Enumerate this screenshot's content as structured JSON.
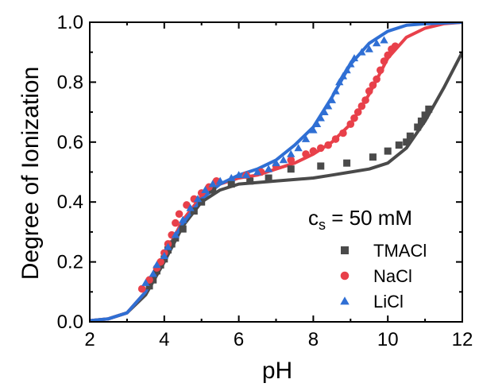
{
  "chart_data": {
    "type": "scatter",
    "xlabel": "pH",
    "ylabel": "Degree of Ionization",
    "xlim": [
      2,
      12
    ],
    "ylim": [
      0.0,
      1.0
    ],
    "x_ticks": [
      "2",
      "4",
      "6",
      "8",
      "10",
      "12"
    ],
    "y_ticks": [
      "0.0",
      "0.2",
      "0.4",
      "0.6",
      "0.8",
      "1.0"
    ],
    "legend_title": {
      "main": "c",
      "sub": "s",
      "rest": " = 50 mM"
    },
    "legend_position": "bottom-right",
    "grid": false,
    "series": [
      {
        "name": "TMACl",
        "marker": "square",
        "color": "#4a4a4a",
        "points": [
          [
            3.6,
            0.12
          ],
          [
            3.7,
            0.14
          ],
          [
            3.8,
            0.17
          ],
          [
            3.9,
            0.19
          ],
          [
            4.0,
            0.21
          ],
          [
            4.1,
            0.24
          ],
          [
            4.2,
            0.26
          ],
          [
            4.3,
            0.28
          ],
          [
            4.5,
            0.31
          ],
          [
            4.8,
            0.37
          ],
          [
            5.0,
            0.4
          ],
          [
            5.3,
            0.44
          ],
          [
            5.8,
            0.46
          ],
          [
            6.3,
            0.47
          ],
          [
            6.8,
            0.48
          ],
          [
            7.4,
            0.51
          ],
          [
            8.2,
            0.52
          ],
          [
            8.9,
            0.53
          ],
          [
            9.6,
            0.55
          ],
          [
            10.0,
            0.57
          ],
          [
            10.3,
            0.59
          ],
          [
            10.5,
            0.6
          ],
          [
            10.6,
            0.62
          ],
          [
            10.8,
            0.65
          ],
          [
            10.9,
            0.67
          ],
          [
            11.0,
            0.69
          ],
          [
            11.1,
            0.71
          ]
        ],
        "fit": [
          [
            2.0,
            0.004
          ],
          [
            2.5,
            0.01
          ],
          [
            3.0,
            0.03
          ],
          [
            3.5,
            0.09
          ],
          [
            4.0,
            0.2
          ],
          [
            4.5,
            0.32
          ],
          [
            5.0,
            0.4
          ],
          [
            5.5,
            0.44
          ],
          [
            6.0,
            0.46
          ],
          [
            7.0,
            0.47
          ],
          [
            8.0,
            0.48
          ],
          [
            8.5,
            0.49
          ],
          [
            9.0,
            0.5
          ],
          [
            9.5,
            0.51
          ],
          [
            10.0,
            0.53
          ],
          [
            10.5,
            0.58
          ],
          [
            11.0,
            0.67
          ],
          [
            11.5,
            0.78
          ],
          [
            12.0,
            0.9
          ]
        ]
      },
      {
        "name": "NaCl",
        "marker": "circle",
        "color": "#e8404a",
        "points": [
          [
            3.4,
            0.11
          ],
          [
            3.6,
            0.14
          ],
          [
            3.8,
            0.18
          ],
          [
            3.9,
            0.2
          ],
          [
            4.0,
            0.23
          ],
          [
            4.1,
            0.26
          ],
          [
            4.2,
            0.29
          ],
          [
            4.3,
            0.33
          ],
          [
            4.4,
            0.36
          ],
          [
            4.6,
            0.39
          ],
          [
            4.8,
            0.41
          ],
          [
            5.0,
            0.43
          ],
          [
            5.2,
            0.45
          ],
          [
            5.4,
            0.47
          ],
          [
            6.2,
            0.49
          ],
          [
            6.6,
            0.5
          ],
          [
            7.0,
            0.52
          ],
          [
            7.4,
            0.54
          ],
          [
            7.8,
            0.56
          ],
          [
            8.0,
            0.57
          ],
          [
            8.2,
            0.58
          ],
          [
            8.4,
            0.59
          ],
          [
            8.6,
            0.61
          ],
          [
            8.8,
            0.63
          ],
          [
            9.0,
            0.66
          ],
          [
            9.1,
            0.68
          ],
          [
            9.2,
            0.7
          ],
          [
            9.3,
            0.72
          ],
          [
            9.4,
            0.74
          ],
          [
            9.5,
            0.77
          ],
          [
            9.6,
            0.79
          ],
          [
            9.7,
            0.81
          ],
          [
            9.8,
            0.84
          ],
          [
            9.9,
            0.87
          ],
          [
            10.0,
            0.89
          ],
          [
            10.1,
            0.91
          ],
          [
            10.2,
            0.92
          ]
        ],
        "fit": [
          [
            2.0,
            0.004
          ],
          [
            2.5,
            0.01
          ],
          [
            3.0,
            0.03
          ],
          [
            3.5,
            0.1
          ],
          [
            4.0,
            0.22
          ],
          [
            4.5,
            0.34
          ],
          [
            5.0,
            0.42
          ],
          [
            5.5,
            0.46
          ],
          [
            6.0,
            0.48
          ],
          [
            6.5,
            0.49
          ],
          [
            7.0,
            0.51
          ],
          [
            7.5,
            0.53
          ],
          [
            8.0,
            0.56
          ],
          [
            8.5,
            0.6
          ],
          [
            9.0,
            0.66
          ],
          [
            9.5,
            0.76
          ],
          [
            10.0,
            0.88
          ],
          [
            10.5,
            0.95
          ],
          [
            11.0,
            0.98
          ],
          [
            11.5,
            0.995
          ],
          [
            12.0,
            1.0
          ]
        ]
      },
      {
        "name": "LiCl",
        "marker": "triangle",
        "color": "#2f6fd4",
        "points": [
          [
            3.5,
            0.13
          ],
          [
            3.7,
            0.16
          ],
          [
            3.8,
            0.19
          ],
          [
            4.0,
            0.22
          ],
          [
            4.1,
            0.25
          ],
          [
            4.3,
            0.29
          ],
          [
            4.5,
            0.34
          ],
          [
            4.7,
            0.38
          ],
          [
            4.9,
            0.41
          ],
          [
            5.1,
            0.44
          ],
          [
            5.3,
            0.46
          ],
          [
            5.5,
            0.47
          ],
          [
            5.8,
            0.48
          ],
          [
            6.0,
            0.49
          ],
          [
            6.2,
            0.49
          ],
          [
            6.5,
            0.5
          ],
          [
            6.8,
            0.51
          ],
          [
            7.0,
            0.53
          ],
          [
            7.2,
            0.54
          ],
          [
            7.4,
            0.56
          ],
          [
            7.6,
            0.58
          ],
          [
            7.8,
            0.61
          ],
          [
            8.0,
            0.64
          ],
          [
            8.1,
            0.66
          ],
          [
            8.2,
            0.68
          ],
          [
            8.3,
            0.7
          ],
          [
            8.4,
            0.72
          ],
          [
            8.5,
            0.74
          ],
          [
            8.6,
            0.77
          ],
          [
            8.7,
            0.8
          ],
          [
            8.8,
            0.82
          ],
          [
            8.9,
            0.84
          ],
          [
            9.0,
            0.86
          ],
          [
            9.1,
            0.88
          ],
          [
            9.3,
            0.9
          ],
          [
            9.5,
            0.91
          ],
          [
            9.7,
            0.93
          ],
          [
            9.9,
            0.94
          ]
        ],
        "fit": [
          [
            2.0,
            0.004
          ],
          [
            2.5,
            0.01
          ],
          [
            3.0,
            0.03
          ],
          [
            3.5,
            0.1
          ],
          [
            4.0,
            0.22
          ],
          [
            4.5,
            0.33
          ],
          [
            5.0,
            0.41
          ],
          [
            5.5,
            0.46
          ],
          [
            6.0,
            0.49
          ],
          [
            6.5,
            0.51
          ],
          [
            7.0,
            0.54
          ],
          [
            7.5,
            0.59
          ],
          [
            8.0,
            0.65
          ],
          [
            8.5,
            0.75
          ],
          [
            9.0,
            0.86
          ],
          [
            9.5,
            0.93
          ],
          [
            10.0,
            0.97
          ],
          [
            10.5,
            0.99
          ],
          [
            11.0,
            0.995
          ],
          [
            12.0,
            1.0
          ]
        ]
      }
    ]
  }
}
